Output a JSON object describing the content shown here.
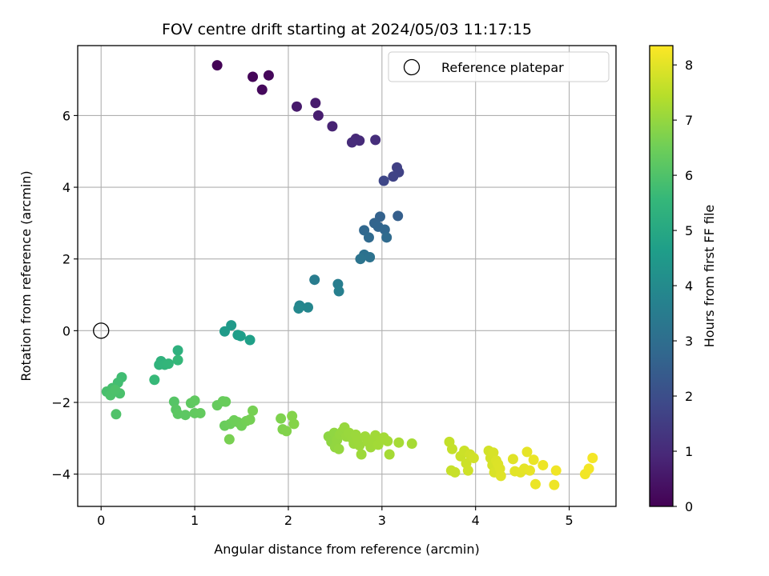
{
  "chart_data": {
    "type": "scatter",
    "title": "FOV centre drift starting at 2024/05/03 11:17:15",
    "xlabel": "Angular distance from reference (arcmin)",
    "ylabel": "Rotation from reference (arcmin)",
    "xlim": [
      -0.25,
      5.5
    ],
    "ylim": [
      -4.9,
      7.95
    ],
    "xticks": [
      "0",
      "1",
      "2",
      "3",
      "4",
      "5"
    ],
    "yticks": [
      "−4",
      "−2",
      "0",
      "2",
      "4",
      "6"
    ],
    "grid": true,
    "legend": {
      "placement": "top-right",
      "entries": [
        "Reference platepar"
      ]
    },
    "reference_point": {
      "x": 0,
      "y": 0
    },
    "colorbar": {
      "label": "Hours from first FF file",
      "range": [
        0,
        8.35
      ],
      "ticks": [
        "0",
        "1",
        "2",
        "3",
        "4",
        "5",
        "6",
        "7",
        "8"
      ],
      "colormap": "viridis",
      "colors": [
        "#440154",
        "#482878",
        "#3e4989",
        "#31688e",
        "#26828e",
        "#1f9e89",
        "#35b779",
        "#6ece58",
        "#b5de2b",
        "#fde725"
      ]
    },
    "series": [
      {
        "points": [
          [
            1.24,
            7.4,
            0.05
          ],
          [
            1.62,
            7.08,
            0.1
          ],
          [
            1.79,
            7.12,
            0.15
          ],
          [
            1.72,
            6.72,
            0.2
          ],
          [
            2.09,
            6.25,
            0.6
          ],
          [
            2.29,
            6.35,
            0.65
          ],
          [
            2.32,
            6.0,
            0.7
          ],
          [
            2.47,
            5.7,
            0.8
          ],
          [
            2.72,
            5.35,
            0.95
          ],
          [
            2.76,
            5.3,
            1.0
          ],
          [
            2.68,
            5.25,
            1.05
          ],
          [
            2.93,
            5.32,
            1.1
          ],
          [
            3.16,
            4.55,
            1.6
          ],
          [
            3.18,
            4.42,
            1.65
          ],
          [
            3.12,
            4.3,
            1.7
          ],
          [
            3.02,
            4.18,
            1.8
          ],
          [
            3.17,
            3.2,
            2.5
          ],
          [
            2.98,
            3.18,
            2.6
          ],
          [
            2.92,
            3.0,
            2.65
          ],
          [
            2.96,
            2.9,
            2.7
          ],
          [
            3.03,
            2.82,
            2.75
          ],
          [
            2.81,
            2.8,
            2.8
          ],
          [
            2.86,
            2.6,
            2.85
          ],
          [
            3.05,
            2.6,
            2.9
          ],
          [
            2.81,
            2.12,
            3.1
          ],
          [
            2.87,
            2.05,
            3.15
          ],
          [
            2.77,
            2.0,
            3.2
          ],
          [
            2.28,
            1.42,
            3.5
          ],
          [
            2.53,
            1.3,
            3.55
          ],
          [
            2.54,
            1.1,
            3.6
          ],
          [
            2.12,
            0.7,
            3.8
          ],
          [
            2.21,
            0.65,
            3.85
          ],
          [
            2.11,
            0.62,
            3.9
          ],
          [
            1.39,
            0.15,
            4.5
          ],
          [
            1.32,
            -0.02,
            4.55
          ],
          [
            1.46,
            -0.12,
            4.6
          ],
          [
            1.49,
            -0.15,
            4.65
          ],
          [
            1.59,
            -0.26,
            4.7
          ],
          [
            0.82,
            -0.55,
            5.3
          ],
          [
            0.64,
            -0.85,
            5.35
          ],
          [
            0.62,
            -0.95,
            5.4
          ],
          [
            0.68,
            -0.95,
            5.45
          ],
          [
            0.72,
            -0.92,
            5.5
          ],
          [
            0.82,
            -0.82,
            5.55
          ],
          [
            0.57,
            -1.37,
            5.6
          ],
          [
            0.22,
            -1.3,
            5.75
          ],
          [
            0.18,
            -1.45,
            5.8
          ],
          [
            0.12,
            -1.6,
            5.85
          ],
          [
            0.06,
            -1.7,
            5.9
          ],
          [
            0.2,
            -1.75,
            5.92
          ],
          [
            0.1,
            -1.8,
            5.95
          ],
          [
            0.15,
            -1.65,
            5.97
          ],
          [
            0.16,
            -2.33,
            6.0
          ],
          [
            0.78,
            -1.98,
            6.1
          ],
          [
            0.8,
            -2.2,
            6.15
          ],
          [
            0.82,
            -2.32,
            6.2
          ],
          [
            0.9,
            -2.35,
            6.22
          ],
          [
            0.96,
            -2.02,
            6.25
          ],
          [
            1.0,
            -1.95,
            6.28
          ],
          [
            1.0,
            -2.3,
            6.3
          ],
          [
            1.06,
            -2.3,
            6.32
          ],
          [
            1.24,
            -2.08,
            6.35
          ],
          [
            1.3,
            -1.97,
            6.38
          ],
          [
            1.33,
            -1.98,
            6.4
          ],
          [
            1.32,
            -2.65,
            6.42
          ],
          [
            1.38,
            -2.6,
            6.45
          ],
          [
            1.42,
            -2.5,
            6.48
          ],
          [
            1.46,
            -2.55,
            6.5
          ],
          [
            1.5,
            -2.65,
            6.52
          ],
          [
            1.55,
            -2.52,
            6.55
          ],
          [
            1.59,
            -2.48,
            6.58
          ],
          [
            1.62,
            -2.23,
            6.6
          ],
          [
            1.37,
            -3.03,
            6.62
          ],
          [
            1.92,
            -2.45,
            6.7
          ],
          [
            1.94,
            -2.75,
            6.72
          ],
          [
            1.98,
            -2.8,
            6.75
          ],
          [
            2.04,
            -2.38,
            6.78
          ],
          [
            2.06,
            -2.6,
            6.8
          ],
          [
            2.43,
            -2.95,
            6.9
          ],
          [
            2.46,
            -3.1,
            6.92
          ],
          [
            2.49,
            -2.85,
            6.94
          ],
          [
            2.5,
            -3.25,
            6.96
          ],
          [
            2.52,
            -3.05,
            6.98
          ],
          [
            2.54,
            -3.3,
            7.0
          ],
          [
            2.55,
            -2.9,
            7.01
          ],
          [
            2.58,
            -2.8,
            7.02
          ],
          [
            2.6,
            -2.7,
            7.03
          ],
          [
            2.62,
            -2.95,
            7.04
          ],
          [
            2.65,
            -2.85,
            7.05
          ],
          [
            2.68,
            -3.0,
            7.06
          ],
          [
            2.7,
            -3.15,
            7.07
          ],
          [
            2.72,
            -2.9,
            7.08
          ],
          [
            2.74,
            -3.05,
            7.09
          ],
          [
            2.76,
            -3.2,
            7.1
          ],
          [
            2.78,
            -3.45,
            7.11
          ],
          [
            2.82,
            -2.95,
            7.12
          ],
          [
            2.85,
            -3.1,
            7.13
          ],
          [
            2.88,
            -3.25,
            7.14
          ],
          [
            2.9,
            -3.05,
            7.15
          ],
          [
            2.93,
            -2.92,
            7.16
          ],
          [
            2.96,
            -3.18,
            7.17
          ],
          [
            2.99,
            -3.05,
            7.18
          ],
          [
            3.02,
            -2.98,
            7.19
          ],
          [
            3.06,
            -3.08,
            7.2
          ],
          [
            3.08,
            -3.45,
            7.21
          ],
          [
            3.18,
            -3.12,
            7.22
          ],
          [
            3.32,
            -3.15,
            7.23
          ],
          [
            3.72,
            -3.1,
            7.6
          ],
          [
            3.75,
            -3.3,
            7.62
          ],
          [
            3.74,
            -3.9,
            7.64
          ],
          [
            3.78,
            -3.95,
            7.66
          ],
          [
            3.84,
            -3.5,
            7.68
          ],
          [
            3.88,
            -3.35,
            7.7
          ],
          [
            3.9,
            -3.7,
            7.72
          ],
          [
            3.92,
            -3.9,
            7.74
          ],
          [
            3.94,
            -3.45,
            7.76
          ],
          [
            3.98,
            -3.55,
            7.78
          ],
          [
            4.14,
            -3.35,
            7.8
          ],
          [
            4.16,
            -3.55,
            7.82
          ],
          [
            4.18,
            -3.75,
            7.84
          ],
          [
            4.19,
            -3.4,
            7.86
          ],
          [
            4.2,
            -3.95,
            7.88
          ],
          [
            4.22,
            -3.62,
            7.9
          ],
          [
            4.24,
            -3.72,
            7.92
          ],
          [
            4.26,
            -3.85,
            7.94
          ],
          [
            4.27,
            -4.05,
            7.96
          ],
          [
            4.4,
            -3.58,
            7.98
          ],
          [
            4.42,
            -3.92,
            8.0
          ],
          [
            4.48,
            -3.95,
            8.02
          ],
          [
            4.52,
            -3.85,
            8.04
          ],
          [
            4.55,
            -3.38,
            8.06
          ],
          [
            4.58,
            -3.9,
            8.08
          ],
          [
            4.62,
            -3.6,
            8.1
          ],
          [
            4.64,
            -4.28,
            8.12
          ],
          [
            4.72,
            -3.75,
            8.14
          ],
          [
            4.84,
            -4.3,
            8.16
          ],
          [
            4.86,
            -3.9,
            8.18
          ],
          [
            5.17,
            -4.0,
            8.2
          ],
          [
            5.21,
            -3.85,
            8.22
          ],
          [
            5.25,
            -3.55,
            8.24
          ]
        ]
      }
    ]
  }
}
